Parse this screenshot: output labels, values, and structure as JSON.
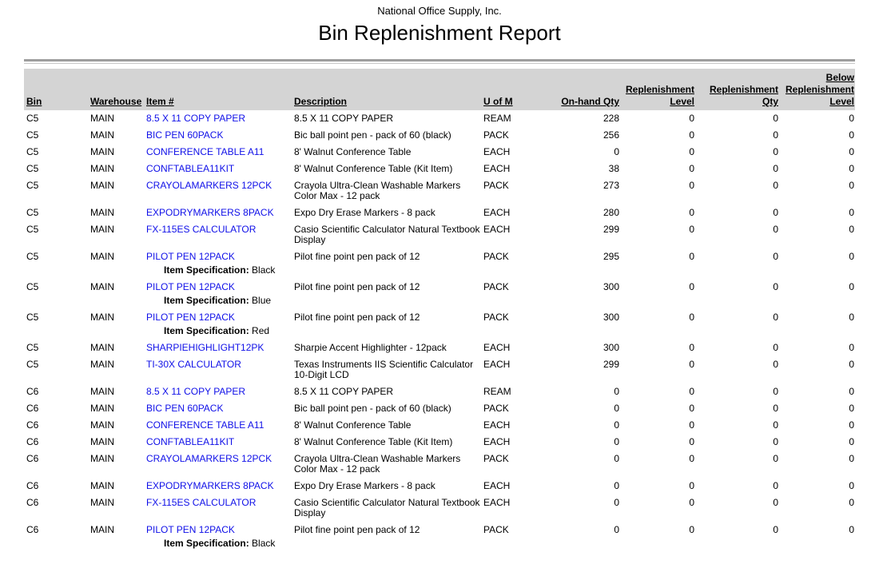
{
  "report": {
    "company": "National Office Supply, Inc.",
    "title": "Bin Replenishment Report"
  },
  "colors": {
    "link_blue": "#0f0fe8",
    "header_band": "#d4d4d4",
    "rule_dark": "#9e9e9e",
    "rule_light": "#c9c9c9"
  },
  "table": {
    "columns": {
      "bin": "Bin",
      "warehouse": "Warehouse",
      "item": "Item #",
      "description": "Description",
      "uom": "U of M",
      "onhand": "On-hand Qty",
      "repl_level": "Replenishment\nLevel",
      "repl_qty": "Replenishment\nQty",
      "below_repl": "Below\nReplenishment\nLevel"
    },
    "spec_label": "Item Specification:",
    "rows": [
      {
        "bin": "C5",
        "warehouse": "MAIN",
        "item": "8.5 X 11 COPY PAPER",
        "description": "8.5 X 11 COPY PAPER",
        "uom": "REAM",
        "onhand": 228,
        "repl_level": 0,
        "repl_qty": 0,
        "below_repl": 0
      },
      {
        "bin": "C5",
        "warehouse": "MAIN",
        "item": "BIC PEN 60PACK",
        "description": "Bic ball point pen - pack of 60 (black)",
        "uom": "PACK",
        "onhand": 256,
        "repl_level": 0,
        "repl_qty": 0,
        "below_repl": 0
      },
      {
        "bin": "C5",
        "warehouse": "MAIN",
        "item": "CONFERENCE TABLE A11",
        "description": "8' Walnut Conference Table",
        "uom": "EACH",
        "onhand": 0,
        "repl_level": 0,
        "repl_qty": 0,
        "below_repl": 0
      },
      {
        "bin": "C5",
        "warehouse": "MAIN",
        "item": "CONFTABLEA11KIT",
        "description": "8' Walnut Conference Table (Kit Item)",
        "uom": "EACH",
        "onhand": 38,
        "repl_level": 0,
        "repl_qty": 0,
        "below_repl": 0
      },
      {
        "bin": "C5",
        "warehouse": "MAIN",
        "item": "CRAYOLAMARKERS 12PCK",
        "description": "Crayola Ultra-Clean Washable Markers Color Max - 12 pack",
        "uom": "PACK",
        "onhand": 273,
        "repl_level": 0,
        "repl_qty": 0,
        "below_repl": 0
      },
      {
        "bin": "C5",
        "warehouse": "MAIN",
        "item": "EXPODRYMARKERS 8PACK",
        "description": "Expo Dry Erase Markers - 8 pack",
        "uom": "EACH",
        "onhand": 280,
        "repl_level": 0,
        "repl_qty": 0,
        "below_repl": 0
      },
      {
        "bin": "C5",
        "warehouse": "MAIN",
        "item": "FX-115ES CALCULATOR",
        "description": "Casio Scientific Calculator Natural Textbook Display",
        "uom": "EACH",
        "onhand": 299,
        "repl_level": 0,
        "repl_qty": 0,
        "below_repl": 0
      },
      {
        "bin": "C5",
        "warehouse": "MAIN",
        "item": "PILOT PEN 12PACK",
        "description": "Pilot fine point pen pack of 12",
        "uom": "PACK",
        "onhand": 295,
        "repl_level": 0,
        "repl_qty": 0,
        "below_repl": 0,
        "spec": "Black"
      },
      {
        "bin": "C5",
        "warehouse": "MAIN",
        "item": "PILOT PEN 12PACK",
        "description": "Pilot fine point pen pack of 12",
        "uom": "PACK",
        "onhand": 300,
        "repl_level": 0,
        "repl_qty": 0,
        "below_repl": 0,
        "spec": "Blue"
      },
      {
        "bin": "C5",
        "warehouse": "MAIN",
        "item": "PILOT PEN 12PACK",
        "description": "Pilot fine point pen pack of 12",
        "uom": "PACK",
        "onhand": 300,
        "repl_level": 0,
        "repl_qty": 0,
        "below_repl": 0,
        "spec": "Red"
      },
      {
        "bin": "C5",
        "warehouse": "MAIN",
        "item": "SHARPIEHIGHLIGHT12PK",
        "description": "Sharpie Accent Highlighter - 12pack",
        "uom": "EACH",
        "onhand": 300,
        "repl_level": 0,
        "repl_qty": 0,
        "below_repl": 0
      },
      {
        "bin": "C5",
        "warehouse": "MAIN",
        "item": "TI-30X CALCULATOR",
        "description": "Texas Instruments IIS Scientific Calculator 10-Digit LCD",
        "uom": "EACH",
        "onhand": 299,
        "repl_level": 0,
        "repl_qty": 0,
        "below_repl": 0
      },
      {
        "bin": "C6",
        "warehouse": "MAIN",
        "item": "8.5 X 11 COPY PAPER",
        "description": "8.5 X 11 COPY PAPER",
        "uom": "REAM",
        "onhand": 0,
        "repl_level": 0,
        "repl_qty": 0,
        "below_repl": 0
      },
      {
        "bin": "C6",
        "warehouse": "MAIN",
        "item": "BIC PEN 60PACK",
        "description": "Bic ball point pen - pack of 60 (black)",
        "uom": "PACK",
        "onhand": 0,
        "repl_level": 0,
        "repl_qty": 0,
        "below_repl": 0
      },
      {
        "bin": "C6",
        "warehouse": "MAIN",
        "item": "CONFERENCE TABLE A11",
        "description": "8' Walnut Conference Table",
        "uom": "EACH",
        "onhand": 0,
        "repl_level": 0,
        "repl_qty": 0,
        "below_repl": 0
      },
      {
        "bin": "C6",
        "warehouse": "MAIN",
        "item": "CONFTABLEA11KIT",
        "description": "8' Walnut Conference Table (Kit Item)",
        "uom": "EACH",
        "onhand": 0,
        "repl_level": 0,
        "repl_qty": 0,
        "below_repl": 0
      },
      {
        "bin": "C6",
        "warehouse": "MAIN",
        "item": "CRAYOLAMARKERS 12PCK",
        "description": "Crayola Ultra-Clean Washable Markers Color Max - 12 pack",
        "uom": "PACK",
        "onhand": 0,
        "repl_level": 0,
        "repl_qty": 0,
        "below_repl": 0
      },
      {
        "bin": "C6",
        "warehouse": "MAIN",
        "item": "EXPODRYMARKERS 8PACK",
        "description": "Expo Dry Erase Markers - 8 pack",
        "uom": "EACH",
        "onhand": 0,
        "repl_level": 0,
        "repl_qty": 0,
        "below_repl": 0
      },
      {
        "bin": "C6",
        "warehouse": "MAIN",
        "item": "FX-115ES CALCULATOR",
        "description": "Casio Scientific Calculator Natural Textbook Display",
        "uom": "EACH",
        "onhand": 0,
        "repl_level": 0,
        "repl_qty": 0,
        "below_repl": 0
      },
      {
        "bin": "C6",
        "warehouse": "MAIN",
        "item": "PILOT PEN 12PACK",
        "description": "Pilot fine point pen pack of 12",
        "uom": "PACK",
        "onhand": 0,
        "repl_level": 0,
        "repl_qty": 0,
        "below_repl": 0,
        "spec": "Black"
      }
    ]
  }
}
